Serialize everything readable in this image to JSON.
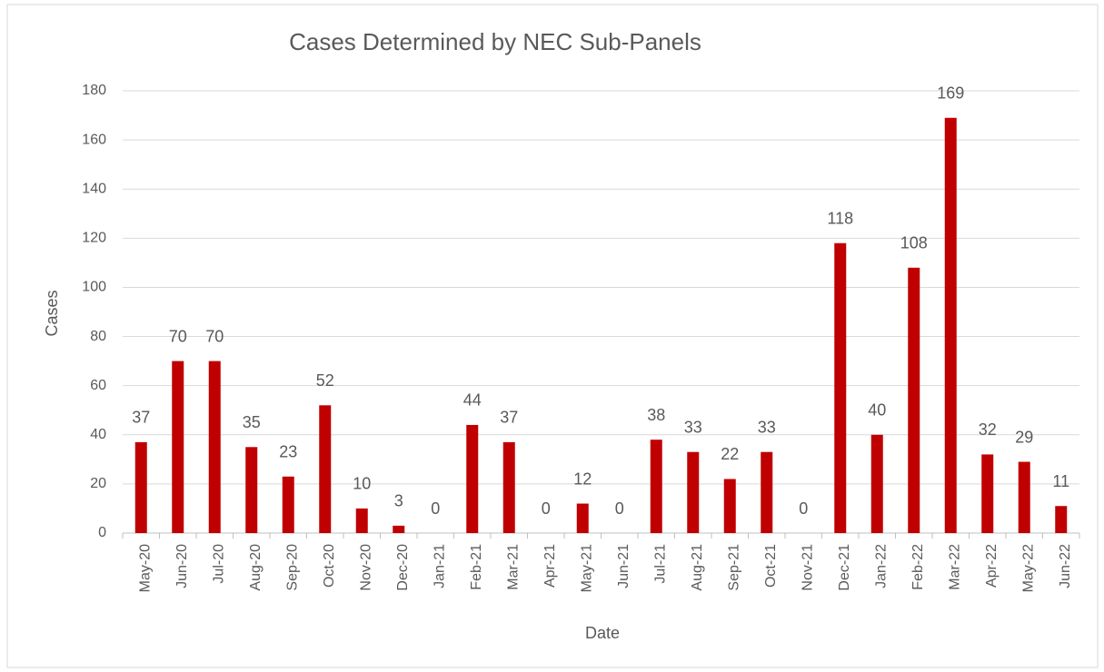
{
  "chart_data": {
    "type": "bar",
    "title": "Cases Determined by NEC Sub-Panels",
    "x_label": "Date",
    "y_label": "Cases",
    "categories": [
      "May-20",
      "Jun-20",
      "Jul-20",
      "Aug-20",
      "Sep-20",
      "Oct-20",
      "Nov-20",
      "Dec-20",
      "Jan-21",
      "Feb-21",
      "Mar-21",
      "Apr-21",
      "May-21",
      "Jun-21",
      "Jul-21",
      "Aug-21",
      "Sep-21",
      "Oct-21",
      "Nov-21",
      "Dec-21",
      "Jan-22",
      "Feb-22",
      "Mar-22",
      "Apr-22",
      "May-22",
      "Jun-22"
    ],
    "values": [
      37,
      70,
      70,
      35,
      23,
      52,
      10,
      3,
      0,
      44,
      37,
      0,
      12,
      0,
      38,
      33,
      22,
      33,
      0,
      118,
      40,
      108,
      169,
      32,
      29,
      11
    ],
    "color": "#c00000",
    "ylim": [
      0,
      180
    ],
    "yticks": [
      0,
      20,
      40,
      60,
      80,
      100,
      120,
      140,
      160,
      180
    ],
    "grid": true
  }
}
